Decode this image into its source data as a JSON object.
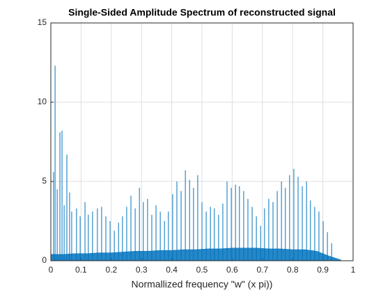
{
  "chart_data": {
    "type": "stem",
    "title": "Single-Sided Amplitude Spectrum of reconstructed signal",
    "xlabel": "Normallized frequency \"w\" (x pi))",
    "xlim": [
      0,
      1
    ],
    "ylim": [
      0,
      15
    ],
    "xticks": [
      0,
      0.1,
      0.2,
      0.3,
      0.4,
      0.5,
      0.6,
      0.7,
      0.8,
      0.9,
      1
    ],
    "yticks": [
      0,
      5,
      10,
      15
    ],
    "grid": true,
    "series": [
      {
        "color": "#0072bd",
        "x": [
          0,
          0.009,
          0.014,
          0.021,
          0.03,
          0.037,
          0.044,
          0.053,
          0.062,
          0.069,
          0.085,
          0.097,
          0.113,
          0.124,
          0.138,
          0.154,
          0.168,
          0.182,
          0.196,
          0.21,
          0.224,
          0.237,
          0.251,
          0.265,
          0.279,
          0.293,
          0.306,
          0.32,
          0.334,
          0.348,
          0.362,
          0.376,
          0.389,
          0.403,
          0.417,
          0.431,
          0.445,
          0.459,
          0.472,
          0.486,
          0.5,
          0.514,
          0.528,
          0.541,
          0.555,
          0.569,
          0.583,
          0.597,
          0.611,
          0.624,
          0.638,
          0.652,
          0.666,
          0.68,
          0.694,
          0.707,
          0.721,
          0.735,
          0.749,
          0.763,
          0.776,
          0.79,
          0.804,
          0.818,
          0.832,
          0.846,
          0.859,
          0.873,
          0.887,
          0.901,
          0.915,
          0.929
        ],
        "values": [
          14.5,
          5.6,
          12.3,
          4.5,
          8.1,
          8.2,
          3.5,
          6.7,
          4.3,
          3.1,
          3.3,
          2.8,
          3.7,
          2.9,
          3.1,
          3.3,
          3.4,
          2.8,
          2.5,
          1.9,
          2.4,
          2.8,
          3.4,
          4.1,
          3.3,
          4.6,
          3.7,
          3.9,
          2.9,
          3.5,
          3.1,
          2.5,
          3.1,
          4.2,
          5.0,
          4.4,
          5.7,
          5.1,
          4.6,
          5.4,
          3.7,
          3.1,
          3.4,
          3.3,
          2.9,
          3.6,
          5.0,
          4.6,
          4.8,
          4.7,
          4.4,
          3.9,
          3.4,
          2.8,
          2.2,
          3.3,
          3.9,
          3.7,
          4.4,
          5.0,
          4.6,
          5.4,
          5.8,
          5.3,
          4.7,
          5.0,
          3.8,
          3.4,
          3.1,
          2.5,
          1.8,
          1.1
        ]
      },
      {
        "color": "#0072bd",
        "type": "area",
        "x": [
          0,
          0.04,
          0.08,
          0.12,
          0.16,
          0.2,
          0.24,
          0.28,
          0.32,
          0.36,
          0.4,
          0.44,
          0.48,
          0.52,
          0.56,
          0.6,
          0.64,
          0.68,
          0.72,
          0.76,
          0.8,
          0.84,
          0.88,
          0.92,
          0.96
        ],
        "values": [
          0.4,
          0.4,
          0.45,
          0.45,
          0.5,
          0.5,
          0.55,
          0.6,
          0.6,
          0.65,
          0.65,
          0.7,
          0.7,
          0.75,
          0.75,
          0.8,
          0.8,
          0.8,
          0.75,
          0.75,
          0.7,
          0.7,
          0.6,
          0.3,
          0.05
        ]
      }
    ]
  }
}
